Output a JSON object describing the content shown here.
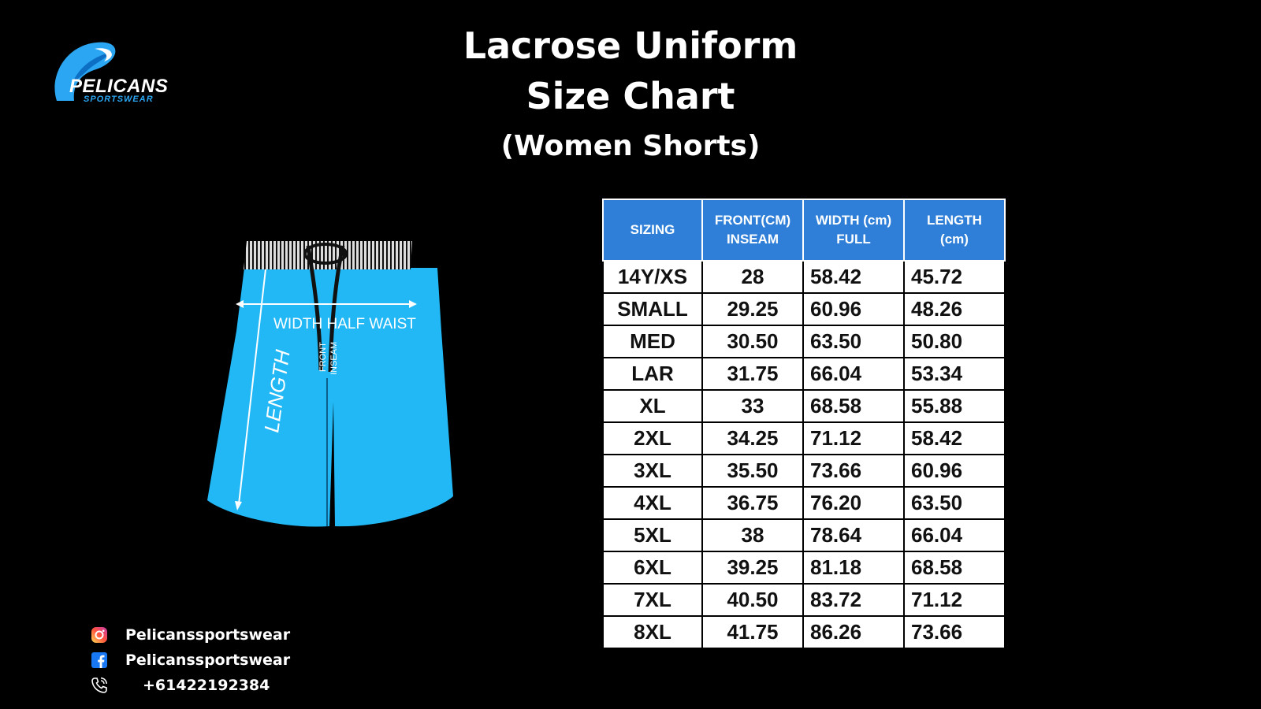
{
  "brand": {
    "name": "PELICANS",
    "tagline": "SPORTSWEAR",
    "accent_color": "#2aa6f2"
  },
  "title": {
    "line1": "Lacrose Uniform",
    "line2": "Size Chart",
    "line3": "(Women Shorts)"
  },
  "diagram": {
    "label_width": "WIDTH HALF WAIST",
    "label_length": "LENGTH",
    "label_front": "FRONT",
    "label_inseam": "INSEAM",
    "shorts_color": "#22b8f5"
  },
  "table": {
    "header_color": "#2f7fd8",
    "headers": [
      {
        "line1": "SIZING",
        "line2": ""
      },
      {
        "line1": "FRONT(CM)",
        "line2": "INSEAM"
      },
      {
        "line1": "WIDTH (cm)",
        "line2": "FULL"
      },
      {
        "line1": "LENGTH",
        "line2": "(cm)"
      }
    ],
    "rows": [
      [
        "14Y/XS",
        "28",
        "58.42",
        "45.72"
      ],
      [
        "SMALL",
        "29.25",
        "60.96",
        "48.26"
      ],
      [
        "MED",
        "30.50",
        "63.50",
        "50.80"
      ],
      [
        "LAR",
        "31.75",
        "66.04",
        "53.34"
      ],
      [
        "XL",
        "33",
        "68.58",
        "55.88"
      ],
      [
        "2XL",
        "34.25",
        "71.12",
        "58.42"
      ],
      [
        "3XL",
        "35.50",
        "73.66",
        "60.96"
      ],
      [
        "4XL",
        "36.75",
        "76.20",
        "63.50"
      ],
      [
        "5XL",
        "38",
        "78.64",
        "66.04"
      ],
      [
        "6XL",
        "39.25",
        "81.18",
        "68.58"
      ],
      [
        "7XL",
        "40.50",
        "83.72",
        "71.12"
      ],
      [
        "8XL",
        "41.75",
        "86.26",
        "73.66"
      ]
    ]
  },
  "contacts": [
    {
      "icon": "instagram-icon",
      "text": "Pelicanssportswear"
    },
    {
      "icon": "facebook-icon",
      "text": "Pelicanssportswear"
    },
    {
      "icon": "phone-icon",
      "text": "+61422192384"
    }
  ]
}
